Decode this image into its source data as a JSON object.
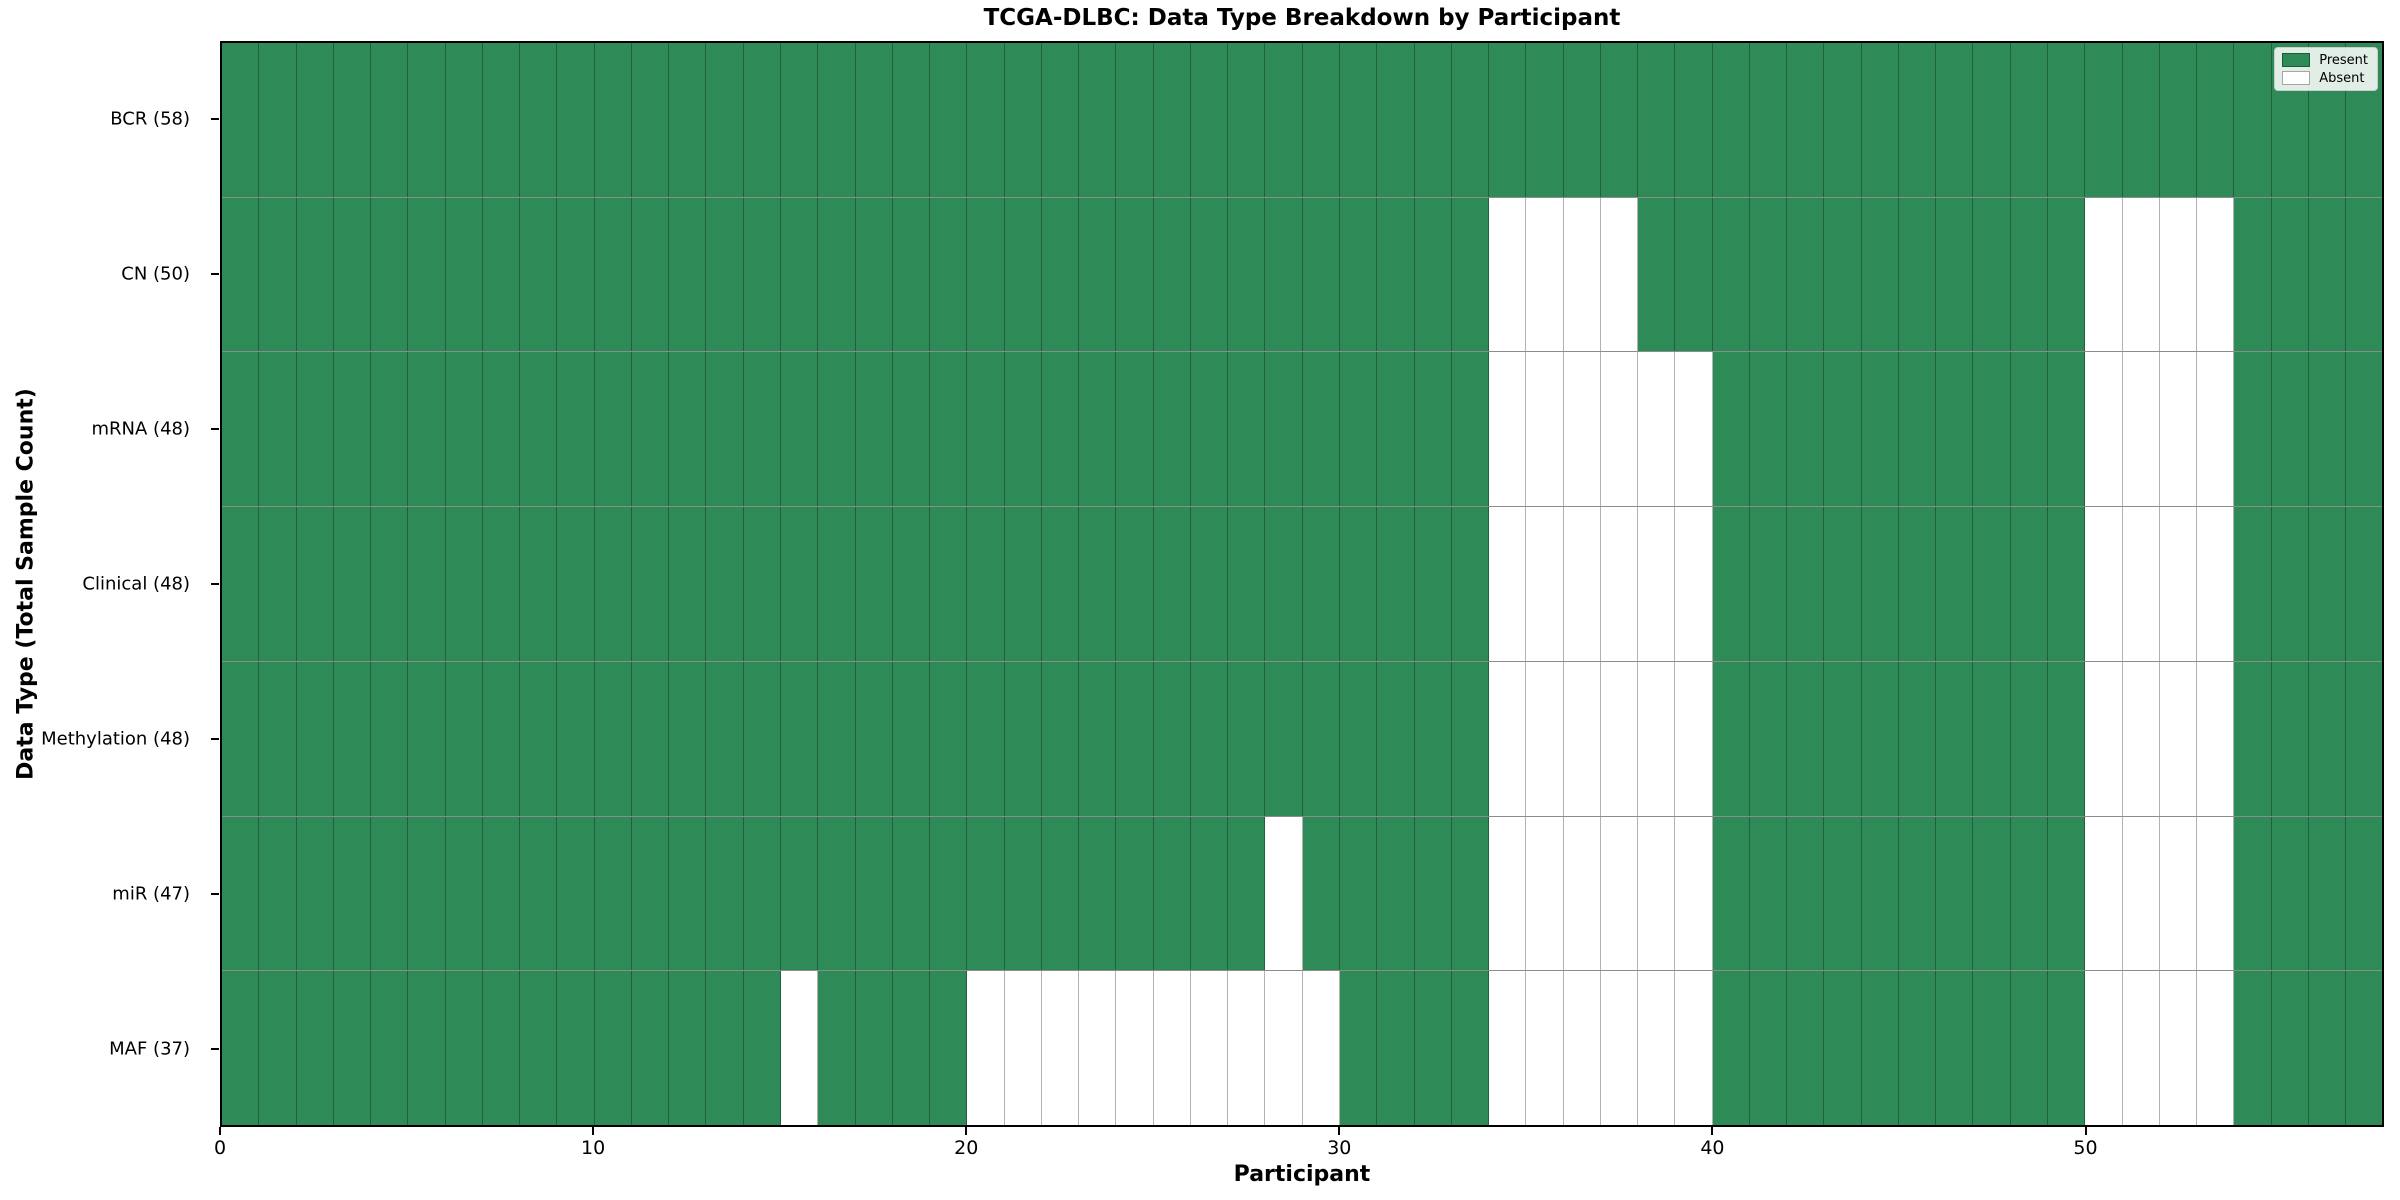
{
  "chart_data": {
    "type": "heatmap",
    "title": "TCGA-DLBC: Data Type Breakdown by Participant",
    "xlabel": "Participant",
    "ylabel": "Data Type (Total Sample Count)",
    "participants_total": 58,
    "x_axis_range": [
      0,
      58
    ],
    "x_ticks": [
      0,
      10,
      20,
      30,
      40,
      50
    ],
    "grid": true,
    "colors": {
      "present": "#2e8b57",
      "absent": "#ffffff"
    },
    "legend": {
      "position": "upper right",
      "entries": [
        {
          "label": "Present",
          "color": "#2e8b57"
        },
        {
          "label": "Absent",
          "color": "#ffffff"
        }
      ]
    },
    "rows": [
      {
        "label": "BCR (58)",
        "data_type": "BCR",
        "present_count": 58,
        "absent_participants": []
      },
      {
        "label": "CN (50)",
        "data_type": "CN",
        "present_count": 50,
        "absent_participants": [
          34,
          35,
          36,
          37,
          50,
          51,
          52,
          53
        ]
      },
      {
        "label": "mRNA (48)",
        "data_type": "mRNA",
        "present_count": 48,
        "absent_participants": [
          34,
          35,
          36,
          37,
          38,
          39,
          50,
          51,
          52,
          53
        ]
      },
      {
        "label": "Clinical (48)",
        "data_type": "Clinical",
        "present_count": 48,
        "absent_participants": [
          34,
          35,
          36,
          37,
          38,
          39,
          50,
          51,
          52,
          53
        ]
      },
      {
        "label": "Methylation (48)",
        "data_type": "Methylation",
        "present_count": 48,
        "absent_participants": [
          34,
          35,
          36,
          37,
          38,
          39,
          50,
          51,
          52,
          53
        ]
      },
      {
        "label": "miR (47)",
        "data_type": "miR",
        "present_count": 47,
        "absent_participants": [
          28,
          34,
          35,
          36,
          37,
          38,
          39,
          50,
          51,
          52,
          53
        ]
      },
      {
        "label": "MAF (37)",
        "data_type": "MAF",
        "present_count": 37,
        "absent_participants": [
          15,
          20,
          21,
          22,
          23,
          24,
          25,
          26,
          27,
          28,
          29,
          34,
          35,
          36,
          37,
          38,
          39,
          50,
          51,
          52,
          53
        ]
      }
    ]
  }
}
